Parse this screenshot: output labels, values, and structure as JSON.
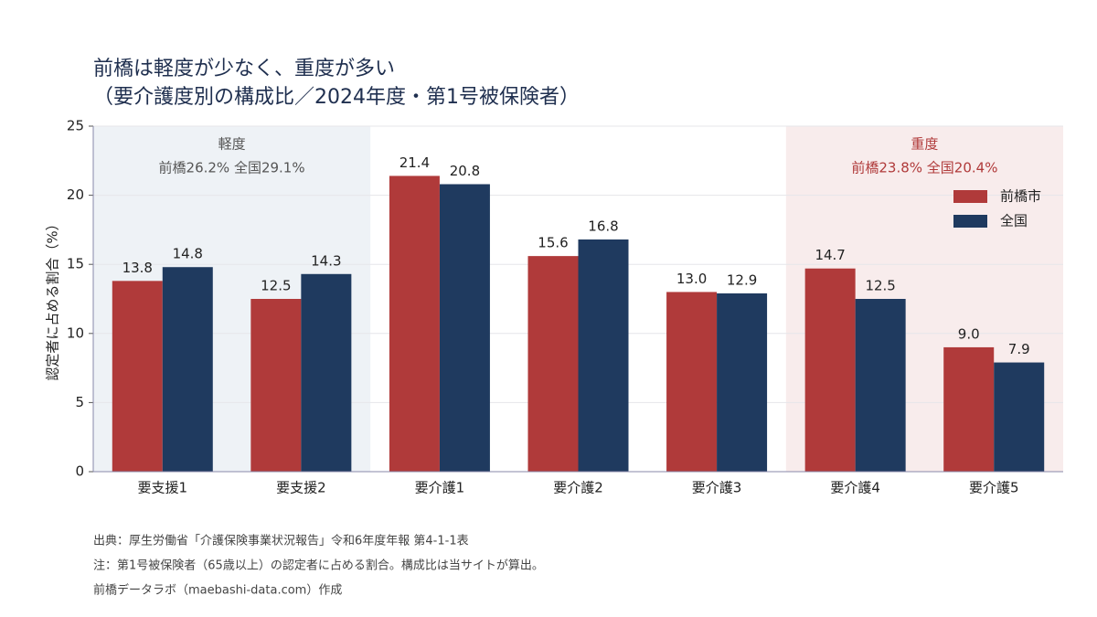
{
  "chart_data": {
    "type": "bar",
    "title": "前橋は軽度が少なく、重度が多い",
    "subtitle": "（要介護度別の構成比／2024年度・第1号被保険者）",
    "y_label": "認定者に占める割合（%）",
    "categories": [
      "要支援1",
      "要支援2",
      "要介護1",
      "要介護2",
      "要介護3",
      "要介護4",
      "要介護5"
    ],
    "series": [
      {
        "name": "前橋市",
        "color": "#b03a3a",
        "values": [
          13.8,
          12.5,
          21.4,
          15.6,
          13.0,
          14.7,
          9.0
        ],
        "value_labels": [
          "13.8",
          "12.5",
          "21.4",
          "15.6",
          "13.0",
          "14.7",
          "9.0"
        ]
      },
      {
        "name": "全国",
        "color": "#1f3a5f",
        "values": [
          14.8,
          14.3,
          20.8,
          16.8,
          12.9,
          12.5,
          7.9
        ],
        "value_labels": [
          "14.8",
          "14.3",
          "20.8",
          "16.8",
          "12.9",
          "12.5",
          "7.9"
        ]
      }
    ],
    "regions": [
      {
        "label": "軽度",
        "note": "前橋26.2% 全国29.1%",
        "from": "要支援1",
        "to": "要支援2",
        "fill": "#eef2f6",
        "text_color": "#555555"
      },
      {
        "label": "重度",
        "note": "前橋23.8% 全国20.4%",
        "from": "要介護4",
        "to": "要介護5",
        "fill": "#f8ecec",
        "text_color": "#b03a3a"
      }
    ],
    "ylim": [
      0,
      25
    ],
    "yticks": [
      0,
      5,
      10,
      15,
      20,
      25
    ],
    "grid": true,
    "legend": "upper right"
  },
  "notes": [
    "出典：厚生労働省「介護保険事業状況報告」令和6年度年報 第4-1-1表",
    "注：第1号被保険者（65歳以上）の認定者に占める割合。構成比は当サイトが算出。",
    "前橋データラボ（maebashi-data.com）作成"
  ]
}
